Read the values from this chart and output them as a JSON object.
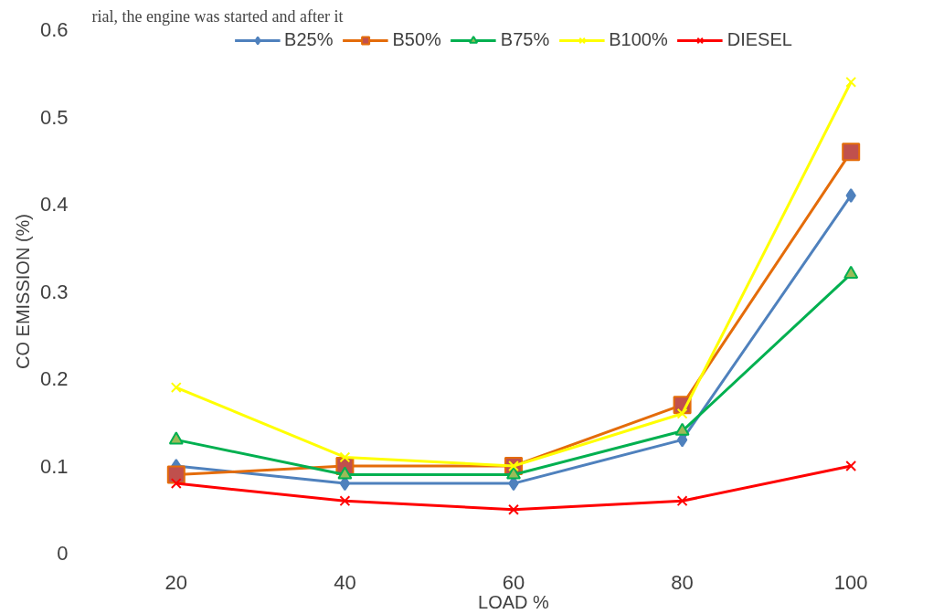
{
  "chart_data": {
    "type": "line",
    "xlabel": "LOAD %",
    "ylabel": "CO EMISSION (%)",
    "annotations": [
      "rial, the engine was started and after it"
    ],
    "categories": [
      "20",
      "40",
      "60",
      "80",
      "100"
    ],
    "ylim": [
      0,
      0.6
    ],
    "yticks": [
      0,
      0.1,
      0.2,
      0.3,
      0.4,
      0.5,
      0.6
    ],
    "grid": false,
    "legend": "top",
    "series": [
      {
        "name": "B25%",
        "color": "#4f81bd",
        "marker": "diamond",
        "values": [
          0.1,
          0.08,
          0.08,
          0.13,
          0.41
        ]
      },
      {
        "name": "B50%",
        "color": "#e46c0a",
        "marker": "square",
        "values": [
          0.09,
          0.1,
          0.1,
          0.17,
          0.46
        ]
      },
      {
        "name": "B75%",
        "color": "#00b050",
        "marker": "triangle",
        "values": [
          0.13,
          0.09,
          0.09,
          0.14,
          0.32
        ]
      },
      {
        "name": "B100%",
        "color": "#ffff00",
        "marker": "cross",
        "values": [
          0.19,
          0.11,
          0.1,
          0.16,
          0.54
        ]
      },
      {
        "name": "DIESEL",
        "color": "#ff0000",
        "marker": "cross",
        "values": [
          0.08,
          0.06,
          0.05,
          0.06,
          0.1
        ]
      }
    ]
  }
}
